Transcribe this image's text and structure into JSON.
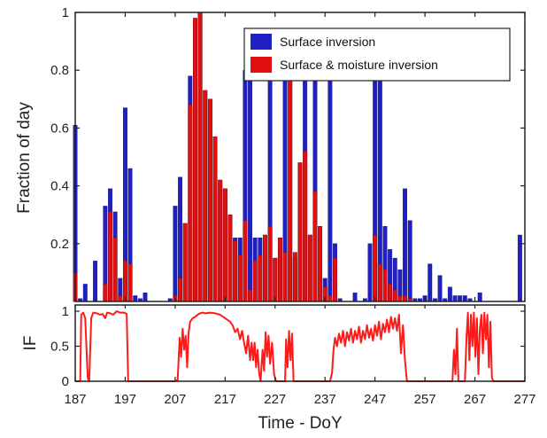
{
  "colors": {
    "surface_inversion": "#1f1fc4",
    "surface_moisture_inversion": "#e01010",
    "if_line": "#ff1a1a",
    "axes": "#222222"
  },
  "chart_data": [
    {
      "type": "bar",
      "ylabel": "Fraction of day",
      "xlim": [
        187,
        277
      ],
      "ylim": [
        0,
        1
      ],
      "yticks": [
        "0.2",
        "0.4",
        "0.6",
        "0.8",
        "1"
      ],
      "ytick_values": [
        0.2,
        0.4,
        0.6,
        0.8,
        1.0
      ],
      "legend": {
        "placement": "top-right",
        "entries": [
          "Surface inversion",
          "Surface & moisture inversion"
        ]
      },
      "x": [
        187,
        188,
        189,
        190,
        191,
        192,
        193,
        194,
        195,
        196,
        197,
        198,
        199,
        200,
        201,
        202,
        203,
        204,
        205,
        206,
        207,
        208,
        209,
        210,
        211,
        212,
        213,
        214,
        215,
        216,
        217,
        218,
        219,
        220,
        221,
        222,
        223,
        224,
        225,
        226,
        227,
        228,
        229,
        230,
        231,
        232,
        233,
        234,
        235,
        236,
        237,
        238,
        239,
        240,
        241,
        242,
        243,
        244,
        245,
        246,
        247,
        248,
        249,
        250,
        251,
        252,
        253,
        254,
        255,
        256,
        257,
        258,
        259,
        260,
        261,
        262,
        263,
        264,
        265,
        266,
        267,
        268,
        269,
        270,
        271,
        272,
        273,
        274,
        275,
        276
      ],
      "series": [
        {
          "name": "Surface inversion",
          "values": [
            0.61,
            0.01,
            0.06,
            0,
            0.14,
            0,
            0.33,
            0.39,
            0.31,
            0.08,
            0.67,
            0.46,
            0.02,
            0.01,
            0.03,
            0,
            0,
            0,
            0,
            0.01,
            0.33,
            0.43,
            0.27,
            0.78,
            0.98,
            1.0,
            0.73,
            0.7,
            0.57,
            0.42,
            0.39,
            0.3,
            0.22,
            0.22,
            0.8,
            0.88,
            0.22,
            0.22,
            0.23,
            0.79,
            0.15,
            0.22,
            0.8,
            0.8,
            0.15,
            0.48,
            0.8,
            0.23,
            0.8,
            0.26,
            0.08,
            0.8,
            0.2,
            0.01,
            0.0,
            0.0,
            0.03,
            0.0,
            0.01,
            0.2,
            0.78,
            0.79,
            0.26,
            0.18,
            0.15,
            0.11,
            0.39,
            0.28,
            0.01,
            0.01,
            0.02,
            0.13,
            0.01,
            0.09,
            0.01,
            0.05,
            0.02,
            0.02,
            0.02,
            0.01,
            0.0,
            0.03,
            0.0,
            0.0,
            0.0,
            0.0,
            0.0,
            0.0,
            0.0,
            0.23
          ]
        },
        {
          "name": "Surface & moisture inversion",
          "values": [
            0.1,
            0,
            0,
            0,
            0,
            0,
            0.06,
            0.31,
            0.22,
            0.02,
            0.14,
            0.13,
            0,
            0,
            0,
            0,
            0,
            0,
            0,
            0,
            0.02,
            0.08,
            0.27,
            0.68,
            0.98,
            1.0,
            0.73,
            0.7,
            0.57,
            0.42,
            0.39,
            0.3,
            0.21,
            0.16,
            0.28,
            0.04,
            0.14,
            0.16,
            0.23,
            0.26,
            0.15,
            0.22,
            0.17,
            0.78,
            0.17,
            0.48,
            0.52,
            0.23,
            0.38,
            0.26,
            0.05,
            0.02,
            0.15,
            0,
            0,
            0,
            0,
            0,
            0,
            0,
            0.23,
            0.13,
            0.11,
            0.06,
            0.04,
            0.02,
            0.02,
            0.01,
            0,
            0,
            0,
            0,
            0,
            0,
            0,
            0,
            0,
            0,
            0,
            0,
            0,
            0,
            0,
            0,
            0,
            0,
            0,
            0,
            0,
            0
          ]
        }
      ]
    },
    {
      "type": "line",
      "ylabel": "IF",
      "xlabel": "Time - DoY",
      "xlim": [
        187,
        277
      ],
      "ylim": [
        0,
        1
      ],
      "yticks": [
        "0",
        "0.5",
        "1"
      ],
      "ytick_values": [
        0,
        0.5,
        1.0
      ],
      "xticks": [
        "187",
        "197",
        "207",
        "217",
        "227",
        "237",
        "247",
        "257",
        "267",
        "277"
      ],
      "xtick_values": [
        187,
        197,
        207,
        217,
        227,
        237,
        247,
        257,
        267,
        277
      ],
      "series": [
        {
          "name": "IF",
          "points": [
            [
              187.0,
              0
            ],
            [
              188.0,
              0
            ],
            [
              188.2,
              0.95
            ],
            [
              188.6,
              0.98
            ],
            [
              189.0,
              0.9
            ],
            [
              189.5,
              0.05
            ],
            [
              189.8,
              0
            ],
            [
              190.2,
              0.9
            ],
            [
              190.6,
              0.98
            ],
            [
              191.3,
              0.97
            ],
            [
              192.0,
              0.95
            ],
            [
              192.5,
              0.96
            ],
            [
              193.0,
              0.9
            ],
            [
              193.4,
              0.98
            ],
            [
              194.0,
              0.97
            ],
            [
              194.6,
              0.95
            ],
            [
              195.3,
              1.0
            ],
            [
              196.0,
              0.98
            ],
            [
              196.8,
              0.98
            ],
            [
              197.3,
              0.96
            ],
            [
              197.6,
              0
            ],
            [
              199,
              0
            ],
            [
              201,
              0
            ],
            [
              203,
              0
            ],
            [
              205,
              0
            ],
            [
              207.0,
              0
            ],
            [
              207.5,
              0.02
            ],
            [
              207.9,
              0.62
            ],
            [
              208.2,
              0.35
            ],
            [
              208.5,
              0.75
            ],
            [
              208.8,
              0.45
            ],
            [
              209.1,
              0.65
            ],
            [
              209.4,
              0.2
            ],
            [
              209.7,
              0.7
            ],
            [
              210.0,
              0.85
            ],
            [
              210.5,
              0.9
            ],
            [
              211.0,
              0.92
            ],
            [
              211.5,
              0.95
            ],
            [
              212.0,
              0.97
            ],
            [
              212.5,
              0.98
            ],
            [
              213.0,
              0.97
            ],
            [
              214.0,
              0.98
            ],
            [
              215.0,
              0.97
            ],
            [
              216.0,
              0.95
            ],
            [
              217.0,
              0.9
            ],
            [
              218.0,
              0.85
            ],
            [
              218.5,
              0.8
            ],
            [
              219.0,
              0.7
            ],
            [
              219.5,
              0.75
            ],
            [
              220.0,
              0.6
            ],
            [
              220.4,
              0.72
            ],
            [
              220.8,
              0.55
            ],
            [
              221.2,
              0.4
            ],
            [
              221.6,
              0.65
            ],
            [
              222.0,
              0.3
            ],
            [
              222.3,
              0.55
            ],
            [
              222.6,
              0.3
            ],
            [
              222.9,
              0.55
            ],
            [
              223.2,
              0.2
            ],
            [
              223.5,
              0.45
            ],
            [
              223.8,
              0.12
            ],
            [
              224.1,
              0
            ],
            [
              224.5,
              0.45
            ],
            [
              224.8,
              0.15
            ],
            [
              225.1,
              0.7
            ],
            [
              225.4,
              0.35
            ],
            [
              225.7,
              0.65
            ],
            [
              226.0,
              0.25
            ],
            [
              226.4,
              0.55
            ],
            [
              226.8,
              0.1
            ],
            [
              227.2,
              0
            ],
            [
              228.0,
              0
            ],
            [
              229.0,
              0
            ],
            [
              229.2,
              0.6
            ],
            [
              229.5,
              0.2
            ],
            [
              229.8,
              0.72
            ],
            [
              230.1,
              0.3
            ],
            [
              230.4,
              0.68
            ],
            [
              230.7,
              0
            ],
            [
              231.0,
              0
            ],
            [
              232.0,
              0
            ],
            [
              233.0,
              0
            ],
            [
              234.0,
              0
            ],
            [
              235.0,
              0
            ],
            [
              236.0,
              0
            ],
            [
              237.0,
              0
            ],
            [
              238.0,
              0
            ],
            [
              238.4,
              0.12
            ],
            [
              238.7,
              0.45
            ],
            [
              239.0,
              0.62
            ],
            [
              239.4,
              0.5
            ],
            [
              239.8,
              0.68
            ],
            [
              240.2,
              0.55
            ],
            [
              240.6,
              0.72
            ],
            [
              241.0,
              0.5
            ],
            [
              241.4,
              0.7
            ],
            [
              241.8,
              0.58
            ],
            [
              242.2,
              0.75
            ],
            [
              242.6,
              0.55
            ],
            [
              243.0,
              0.72
            ],
            [
              243.4,
              0.6
            ],
            [
              243.8,
              0.78
            ],
            [
              244.2,
              0.55
            ],
            [
              244.6,
              0.72
            ],
            [
              245.0,
              0.6
            ],
            [
              245.4,
              0.8
            ],
            [
              245.8,
              0.62
            ],
            [
              246.2,
              0.75
            ],
            [
              246.6,
              0.58
            ],
            [
              247.0,
              0.8
            ],
            [
              247.4,
              0.65
            ],
            [
              247.8,
              0.85
            ],
            [
              248.2,
              0.6
            ],
            [
              248.6,
              0.82
            ],
            [
              249.0,
              0.7
            ],
            [
              249.4,
              0.88
            ],
            [
              249.8,
              0.7
            ],
            [
              250.2,
              0.92
            ],
            [
              250.6,
              0.75
            ],
            [
              251.0,
              0.9
            ],
            [
              251.4,
              0.72
            ],
            [
              251.8,
              0.95
            ],
            [
              252.2,
              0.4
            ],
            [
              252.6,
              0.8
            ],
            [
              253.0,
              0.3
            ],
            [
              253.4,
              0
            ],
            [
              254.0,
              0
            ],
            [
              256.0,
              0
            ],
            [
              258.0,
              0
            ],
            [
              260.0,
              0
            ],
            [
              262.0,
              0
            ],
            [
              262.5,
              0
            ],
            [
              262.8,
              0.45
            ],
            [
              263.1,
              0.1
            ],
            [
              263.4,
              0.75
            ],
            [
              263.7,
              0
            ],
            [
              264.2,
              0
            ],
            [
              265.0,
              0
            ],
            [
              265.3,
              0.6
            ],
            [
              265.6,
              0.98
            ],
            [
              265.9,
              0.3
            ],
            [
              266.2,
              0.95
            ],
            [
              266.5,
              0.5
            ],
            [
              266.8,
              0.98
            ],
            [
              267.1,
              0.35
            ],
            [
              267.4,
              0.9
            ],
            [
              267.7,
              0.1
            ],
            [
              268.0,
              0.75
            ],
            [
              268.3,
              0.95
            ],
            [
              268.6,
              0.4
            ],
            [
              268.9,
              0.98
            ],
            [
              269.2,
              0.6
            ],
            [
              269.5,
              0.95
            ],
            [
              269.8,
              0.2
            ],
            [
              270.1,
              0.85
            ],
            [
              270.4,
              0.05
            ],
            [
              270.7,
              0
            ],
            [
              271.5,
              0
            ],
            [
              273.0,
              0
            ],
            [
              275.0,
              0
            ],
            [
              277.0,
              0
            ]
          ]
        }
      ]
    }
  ]
}
